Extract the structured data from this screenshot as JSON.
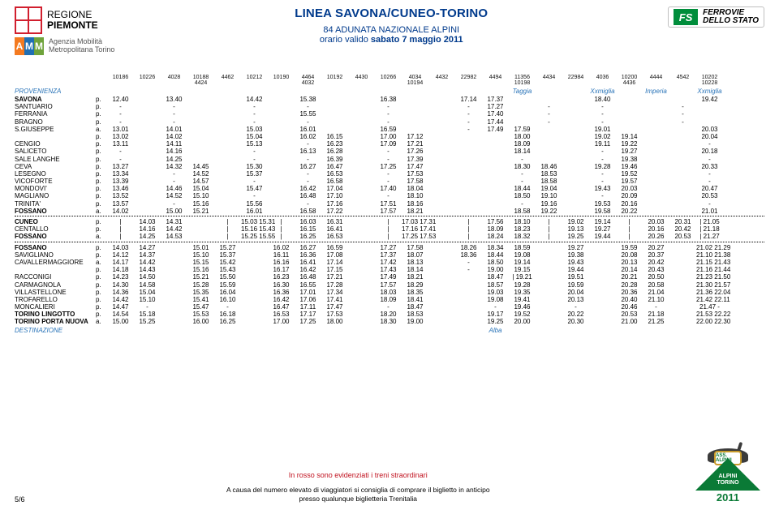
{
  "header": {
    "regione_l1": "REGIONE",
    "regione_l2": "PIEMONTE",
    "amt_label_l1": "Agenzia Mobilità",
    "amt_label_l2": "Metropolitana Torino",
    "title": "LINEA SAVONA/CUNEO-TORINO",
    "sub1": "84 ADUNATA NAZIONALE ALPINI",
    "sub2_pre": "orario valido ",
    "sub2_bold": "sabato 7 maggio 2011",
    "fs_text_l1": "FERROVIE",
    "fs_text_l2": "DELLO STATO"
  },
  "train_ids": [
    "10186",
    "10226",
    "4028",
    "10188",
    "4424",
    "4462",
    "10212",
    "10190",
    "4464",
    "4032",
    "10192",
    "4430",
    "10266",
    "4034",
    "10194",
    "4432",
    "22982",
    "4494",
    "11356",
    "10198",
    "4434",
    "22984",
    "4036",
    "10200",
    "4436",
    "4444",
    "4542",
    "10202",
    "10228"
  ],
  "prov": {
    "label": "PROVENIENZA",
    "cells": [
      "",
      "",
      "",
      "",
      "",
      "",
      "",
      "",
      "",
      "",
      "",
      "",
      "",
      "",
      "",
      "",
      "",
      "",
      "Taggia",
      "",
      "",
      "",
      "Xxmiglia",
      "",
      "",
      "Imperia",
      "",
      "",
      "Xxmiglia"
    ]
  },
  "rows": [
    {
      "s": "SAVONA",
      "pa": "p.",
      "bold": true,
      "c": [
        "12.40",
        "",
        "13.40",
        "",
        "",
        "14.42",
        "",
        "15.38",
        "",
        "",
        "16.38",
        "",
        "",
        "",
        "17.14",
        "17.37",
        "",
        "",
        "",
        "18.40",
        "",
        "",
        "",
        "",
        "19.42"
      ]
    },
    {
      "s": "SANTUARIO",
      "pa": "p.",
      "c": [
        "-",
        "",
        "-",
        "",
        "",
        "-",
        "",
        "-",
        "",
        "",
        "-",
        "",
        "",
        "",
        "-",
        "17.27",
        "",
        "-",
        "",
        "-",
        "",
        "",
        "-",
        "",
        ""
      ]
    },
    {
      "s": "FERRANIA",
      "pa": "p.",
      "c": [
        "-",
        "",
        "-",
        "",
        "",
        "-",
        "",
        "15.55",
        "",
        "",
        "-",
        "",
        "",
        "",
        "-",
        "17.40",
        "",
        "-",
        "",
        "-",
        "",
        "",
        "-",
        "",
        ""
      ]
    },
    {
      "s": "BRAGNO",
      "pa": "p.",
      "c": [
        "-",
        "",
        "-",
        "",
        "",
        "-",
        "",
        "-",
        "",
        "",
        "-",
        "",
        "",
        "",
        "-",
        "17.44",
        "",
        "-",
        "",
        "-",
        "",
        "",
        "-",
        "",
        ""
      ]
    },
    {
      "s": "S.GIUSEPPE",
      "pa": "a.",
      "c": [
        "13.01",
        "",
        "14.01",
        "",
        "",
        "15.03",
        "",
        "16.01",
        "",
        "",
        "16.59",
        "",
        "",
        "",
        "-",
        "17.49",
        "17.59",
        "",
        "",
        "19.01",
        "",
        "",
        "",
        "",
        "20.03"
      ]
    },
    {
      "s": "",
      "pa": "p.",
      "c": [
        "13.02",
        "",
        "14.02",
        "",
        "",
        "15.04",
        "",
        "16.02",
        "16.15",
        "",
        "17.00",
        "17.12",
        "",
        "",
        "",
        "",
        "18.00",
        "",
        "",
        "19.02",
        "19.14",
        "",
        "",
        "",
        "20.04"
      ]
    },
    {
      "s": "CENGIO",
      "pa": "p.",
      "c": [
        "13.11",
        "",
        "14.11",
        "",
        "",
        "15.13",
        "",
        "-",
        "16.23",
        "",
        "17.09",
        "17.21",
        "",
        "",
        "",
        "",
        "18.09",
        "",
        "",
        "19.11",
        "19.22",
        "",
        "",
        "",
        "-"
      ]
    },
    {
      "s": "SALICETO",
      "pa": "p.",
      "c": [
        "-",
        "",
        "14.16",
        "",
        "",
        "-",
        "",
        "16.13",
        "16.28",
        "",
        "-",
        "17.26",
        "",
        "",
        "",
        "",
        "18.14",
        "",
        "",
        "-",
        "19.27",
        "",
        "",
        "",
        "20.18"
      ]
    },
    {
      "s": "SALE LANGHE",
      "pa": "p.",
      "c": [
        "-",
        "",
        "14.25",
        "",
        "",
        "-",
        "",
        "-",
        "16.39",
        "",
        "-",
        "17.39",
        "",
        "",
        "",
        "",
        "-",
        "",
        "",
        "-",
        "19.38",
        "",
        "",
        "",
        "-"
      ]
    },
    {
      "s": "CEVA",
      "pa": "p.",
      "c": [
        "13.27",
        "",
        "14.32",
        "14.45",
        "",
        "15.30",
        "",
        "16.27",
        "16.47",
        "",
        "17.25",
        "17.47",
        "",
        "",
        "",
        "",
        "18.30",
        "18.46",
        "",
        "19.28",
        "19.46",
        "",
        "",
        "",
        "20.33"
      ]
    },
    {
      "s": "LESEGNO",
      "pa": "p.",
      "c": [
        "13.34",
        "",
        "-",
        "14.52",
        "",
        "15.37",
        "",
        "-",
        "16.53",
        "",
        "-",
        "17.53",
        "",
        "",
        "",
        "",
        "-",
        "18.53",
        "",
        "-",
        "19.52",
        "",
        "",
        "",
        "-"
      ]
    },
    {
      "s": "VICOFORTE",
      "pa": "p.",
      "c": [
        "13.39",
        "",
        "-",
        "14.57",
        "",
        "-",
        "",
        "-",
        "16.58",
        "",
        "-",
        "17.58",
        "",
        "",
        "",
        "",
        "-",
        "18.58",
        "",
        "-",
        "19.57",
        "",
        "",
        "",
        "-"
      ]
    },
    {
      "s": "MONDOVI'",
      "pa": "p.",
      "c": [
        "13.46",
        "",
        "14.46",
        "15.04",
        "",
        "15.47",
        "",
        "16.42",
        "17.04",
        "",
        "17.40",
        "18.04",
        "",
        "",
        "",
        "",
        "18.44",
        "19.04",
        "",
        "19.43",
        "20.03",
        "",
        "",
        "",
        "20.47"
      ]
    },
    {
      "s": "MAGLIANO",
      "pa": "p.",
      "c": [
        "13.52",
        "",
        "14.52",
        "15.10",
        "",
        "-",
        "",
        "16.48",
        "17.10",
        "",
        "-",
        "18.10",
        "",
        "",
        "",
        "",
        "18.50",
        "19.10",
        "",
        "-",
        "20.09",
        "",
        "",
        "",
        "20.53"
      ]
    },
    {
      "s": "TRINITA'",
      "pa": "p.",
      "c": [
        "13.57",
        "",
        "-",
        "15.16",
        "",
        "15.56",
        "",
        "-",
        "17.16",
        "",
        "17.51",
        "18.16",
        "",
        "",
        "",
        "",
        "-",
        "19.16",
        "",
        "19.53",
        "20.16",
        "",
        "",
        "",
        "-"
      ]
    },
    {
      "s": "FOSSANO",
      "pa": "a.",
      "bold": true,
      "c": [
        "14.02",
        "",
        "15.00",
        "15.21",
        "",
        "16.01",
        "",
        "16.58",
        "17.22",
        "",
        "17.57",
        "18.21",
        "",
        "",
        "",
        "",
        "18.58",
        "19.22",
        "",
        "19.58",
        "20.22",
        "",
        "",
        "",
        "21.01"
      ]
    },
    {
      "dots": true
    },
    {
      "s": "CUNEO",
      "pa": "p.",
      "bold": true,
      "c": [
        "|",
        "14.03",
        "14.31",
        "",
        "|",
        "15.03",
        "15.31",
        "|",
        "16.03",
        "16.31",
        "",
        "|",
        "17.03",
        "17.31",
        "",
        "|",
        "17.56",
        "18.10",
        "|",
        "",
        "19.02",
        "19.14",
        "|",
        "20.03",
        "20.31",
        "|",
        "21.05"
      ]
    },
    {
      "s": "CENTALLO",
      "pa": "p.",
      "c": [
        "|",
        "14.16",
        "14.42",
        "",
        "|",
        "15.16",
        "15.43",
        "|",
        "16.15",
        "16.41",
        "",
        "|",
        "17.16",
        "17.41",
        "",
        "|",
        "18.09",
        "18.23",
        "|",
        "",
        "19.13",
        "19.27",
        "|",
        "20.16",
        "20.42",
        "|",
        "21.18"
      ]
    },
    {
      "s": "FOSSANO",
      "pa": "a.",
      "bold": true,
      "c": [
        "|",
        "14.25",
        "14.53",
        "",
        "|",
        "15.25",
        "15.55",
        "|",
        "16.25",
        "16.53",
        "",
        "|",
        "17.25",
        "17.53",
        "",
        "|",
        "18.24",
        "18.32",
        "|",
        "",
        "19.25",
        "19.44",
        "|",
        "20.26",
        "20.53",
        "|",
        "21.27"
      ]
    },
    {
      "dots": true
    },
    {
      "s": "FOSSANO",
      "pa": "p.",
      "bold": true,
      "c": [
        "14.03",
        "14.27",
        "",
        "15.01",
        "",
        "15.27",
        "",
        "16.02",
        "16.27",
        "",
        "16.59",
        "",
        "17.27",
        "",
        "17.58",
        "",
        "18.26",
        "18.34",
        "",
        "18.59",
        "",
        "19.27",
        "",
        "19.59",
        "",
        "20.27",
        "",
        "21.02",
        "21.29"
      ]
    },
    {
      "s": "SAVIGLIANO",
      "pa": "p.",
      "c": [
        "14.12",
        "14.37",
        "",
        "15.10",
        "",
        "15.37",
        "",
        "16.11",
        "16.36",
        "",
        "17.08",
        "",
        "17.37",
        "",
        "18.07",
        "",
        "18.36",
        "18.44",
        "",
        "19.08",
        "",
        "19.38",
        "",
        "20.08",
        "",
        "20.37",
        "",
        "21.10",
        "21.38"
      ]
    },
    {
      "s": "CAVALLERMAGGIORE",
      "pa": "a.",
      "c": [
        "14.17",
        "14.42",
        "",
        "15.15",
        "",
        "15.42",
        "",
        "16.16",
        "16.41",
        "",
        "17.14",
        "",
        "17.42",
        "",
        "18.13",
        "",
        "-",
        "18.50",
        "",
        "19.14",
        "",
        "19.43",
        "",
        "20.13",
        "",
        "20.42",
        "",
        "21.15",
        "21.43"
      ]
    },
    {
      "s": "",
      "pa": "p.",
      "c": [
        "14.18",
        "14.43",
        "",
        "15.16",
        "",
        "15.43",
        "",
        "16.17",
        "16.42",
        "",
        "17.15",
        "",
        "17.43",
        "",
        "18.14",
        "",
        "-",
        "19.00",
        "",
        "19.15",
        "",
        "19.44",
        "",
        "20.14",
        "",
        "20.43",
        "",
        "21.16",
        "21.44"
      ]
    },
    {
      "s": "RACCONIGI",
      "pa": "p.",
      "c": [
        "14.23",
        "14.50",
        "",
        "15.21",
        "",
        "15.50",
        "",
        "16.23",
        "16.48",
        "",
        "17.21",
        "",
        "17.49",
        "",
        "18.21",
        "",
        "",
        "18.47",
        "|",
        "19.21",
        "",
        "19.51",
        "",
        "20.21",
        "",
        "20.50",
        "",
        "21.23",
        "21.50"
      ]
    },
    {
      "s": "CARMAGNOLA",
      "pa": "p.",
      "c": [
        "14.30",
        "14.58",
        "",
        "15.28",
        "",
        "15.59",
        "",
        "16.30",
        "16.55",
        "",
        "17.28",
        "",
        "17.57",
        "",
        "18.29",
        "",
        "",
        "18.57",
        "",
        "19.28",
        "",
        "19.59",
        "",
        "20.28",
        "",
        "20.58",
        "",
        "21.30",
        "21.57"
      ]
    },
    {
      "s": "VILLASTELLONE",
      "pa": "p.",
      "c": [
        "14.36",
        "15.04",
        "",
        "15.35",
        "",
        "16.04",
        "",
        "16.36",
        "17.01",
        "",
        "17.34",
        "",
        "18.03",
        "",
        "18.35",
        "",
        "",
        "19.03",
        "",
        "19.35",
        "",
        "20.04",
        "",
        "20.36",
        "",
        "21.04",
        "",
        "21.36",
        "22.04"
      ]
    },
    {
      "s": "TROFARELLO",
      "pa": "p.",
      "c": [
        "14.42",
        "15.10",
        "",
        "15.41",
        "",
        "16.10",
        "",
        "16.42",
        "17.06",
        "",
        "17.41",
        "",
        "18.09",
        "",
        "18.41",
        "",
        "",
        "19.08",
        "",
        "19.41",
        "",
        "20.13",
        "",
        "20.40",
        "",
        "21.10",
        "",
        "21.42",
        "22.11"
      ]
    },
    {
      "s": "MONCALIERI",
      "pa": "p.",
      "c": [
        "14.47",
        "-",
        "",
        "15.47",
        "",
        "-",
        "",
        "16.47",
        "17.11",
        "",
        "17.47",
        "",
        "-",
        "",
        "18.47",
        "",
        "",
        "-",
        "",
        "19.46",
        "",
        "-",
        "",
        "20.46",
        "",
        "-",
        "",
        "21.47",
        "-"
      ]
    },
    {
      "s": "TORINO LINGOTTO",
      "pa": "p.",
      "bold": true,
      "c": [
        "14.54",
        "15.18",
        "",
        "15.53",
        "",
        "16.18",
        "",
        "16.53",
        "17.17",
        "",
        "17.53",
        "",
        "18.20",
        "",
        "18.53",
        "",
        "",
        "19.17",
        "",
        "19.52",
        "",
        "20.22",
        "",
        "20.53",
        "",
        "21.18",
        "",
        "21.53",
        "22.22"
      ]
    },
    {
      "s": "TORINO PORTA NUOVA",
      "pa": "a.",
      "bold": true,
      "c": [
        "15.00",
        "15.25",
        "",
        "16.00",
        "",
        "16.25",
        "",
        "17.00",
        "17.25",
        "",
        "18.00",
        "",
        "18.30",
        "",
        "19.00",
        "",
        "",
        "19.25",
        "",
        "20.00",
        "",
        "20.30",
        "",
        "21.00",
        "",
        "21.25",
        "",
        "22.00",
        "22.30"
      ]
    }
  ],
  "dest": {
    "label": "DESTINAZIONE",
    "cells": [
      "",
      "",
      "",
      "",
      "",
      "",
      "",
      "",
      "",
      "",
      "",
      "",
      "",
      "",
      "",
      "",
      "",
      "Alba",
      "",
      "",
      "",
      "",
      "",
      "",
      "",
      "",
      "",
      "",
      ""
    ]
  },
  "footer": {
    "page": "5/6",
    "red": "In rosso sono evidenziati i treni straordinari",
    "note_l1": "A causa del numero elevato di viaggiatori si consiglia di comprare il biglietto in anticipo",
    "note_l2": "presso qualunque biglietteria Trenitalia",
    "alp_top": "NAZ.",
    "alp_top2": "ASS.   ALPINI",
    "alp_mid1": "ALPINI",
    "alp_mid2": "TORINO",
    "alp_year": "2011"
  },
  "colors": {
    "blue": "#003a8c",
    "linkblue": "#2a74b8",
    "red": "#c1121f",
    "green": "#0a7a36"
  }
}
